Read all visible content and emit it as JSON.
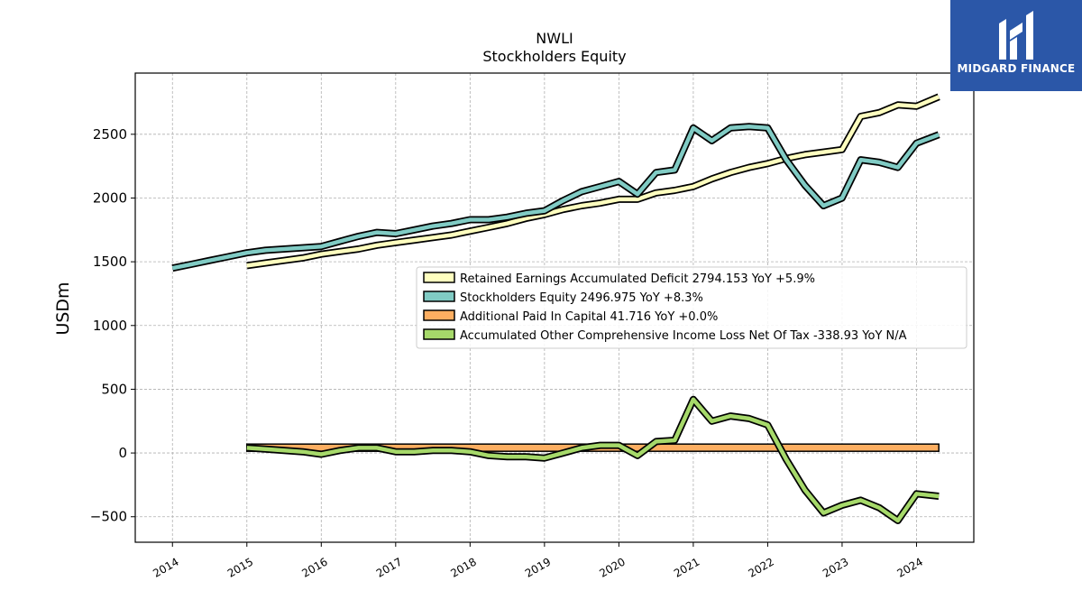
{
  "chart_data": {
    "type": "line",
    "title": "NWLI",
    "subtitle": "Stockholders  Equity",
    "ylabel": "USDm",
    "xlabel": "",
    "xlim": [
      2013.5,
      2024.77
    ],
    "ylim": [
      -700,
      2980
    ],
    "yticks": [
      -500,
      0,
      500,
      1000,
      1500,
      2000,
      2500
    ],
    "ytick_labels": [
      "−500",
      "0",
      "500",
      "1000",
      "1500",
      "2000",
      "2500"
    ],
    "xticks": [
      2014,
      2015,
      2016,
      2017,
      2018,
      2019,
      2020,
      2021,
      2022,
      2023,
      2024
    ],
    "xtick_labels": [
      "2014",
      "2015",
      "2016",
      "2017",
      "2018",
      "2019",
      "2020",
      "2021",
      "2022",
      "2023",
      "2024"
    ],
    "grid": true,
    "legend_position": "center-right",
    "series": [
      {
        "name": "Retained Earnings Accumulated Deficit  2794.153 YoY +5.9%",
        "color": "#ffffbf",
        "x": [
          2015.0,
          2015.25,
          2015.5,
          2015.75,
          2016.0,
          2016.25,
          2016.5,
          2016.75,
          2017.0,
          2017.25,
          2017.5,
          2017.75,
          2018.0,
          2018.25,
          2018.5,
          2018.75,
          2019.0,
          2019.25,
          2019.5,
          2019.75,
          2020.0,
          2020.25,
          2020.5,
          2020.75,
          2021.0,
          2021.25,
          2021.5,
          2021.75,
          2022.0,
          2022.25,
          2022.5,
          2022.75,
          2023.0,
          2023.25,
          2023.5,
          2023.75,
          2024.0,
          2024.3
        ],
        "y": [
          1470,
          1490,
          1510,
          1530,
          1560,
          1580,
          1600,
          1630,
          1650,
          1670,
          1690,
          1710,
          1740,
          1770,
          1800,
          1840,
          1870,
          1910,
          1940,
          1960,
          1990,
          1990,
          2040,
          2060,
          2090,
          2150,
          2200,
          2240,
          2270,
          2310,
          2340,
          2360,
          2380,
          2640,
          2670,
          2730,
          2720,
          2794
        ]
      },
      {
        "name": "Stockholders Equity  2496.975 YoY +8.3%",
        "color": "#80cbc4",
        "x": [
          2014.0,
          2014.25,
          2014.5,
          2014.75,
          2015.0,
          2015.25,
          2015.5,
          2015.75,
          2016.0,
          2016.25,
          2016.5,
          2016.75,
          2017.0,
          2017.25,
          2017.5,
          2017.75,
          2018.0,
          2018.25,
          2018.5,
          2018.75,
          2019.0,
          2019.25,
          2019.5,
          2019.75,
          2020.0,
          2020.25,
          2020.5,
          2020.75,
          2021.0,
          2021.25,
          2021.5,
          2021.75,
          2022.0,
          2022.25,
          2022.5,
          2022.75,
          2023.0,
          2023.25,
          2023.5,
          2023.75,
          2024.0,
          2024.3
        ],
        "y": [
          1450,
          1480,
          1510,
          1540,
          1570,
          1590,
          1600,
          1610,
          1620,
          1660,
          1700,
          1730,
          1720,
          1750,
          1780,
          1800,
          1830,
          1830,
          1850,
          1880,
          1900,
          1980,
          2050,
          2090,
          2130,
          2030,
          2200,
          2220,
          2550,
          2450,
          2550,
          2560,
          2550,
          2300,
          2100,
          1940,
          2000,
          2300,
          2280,
          2240,
          2430,
          2497
        ]
      },
      {
        "name": "Additional Paid In Capital  41.716 YoY +0.0%",
        "color": "#fdae61",
        "x": [
          2015.0,
          2024.3
        ],
        "y": [
          41.716,
          41.716
        ]
      },
      {
        "name": "Accumulated Other Comprehensive Income Loss Net Of Tax  -338.93 YoY N/A",
        "color": "#a6d96a",
        "x": [
          2015.0,
          2015.25,
          2015.5,
          2015.75,
          2016.0,
          2016.25,
          2016.5,
          2016.75,
          2017.0,
          2017.25,
          2017.5,
          2017.75,
          2018.0,
          2018.25,
          2018.5,
          2018.75,
          2019.0,
          2019.25,
          2019.5,
          2019.75,
          2020.0,
          2020.25,
          2020.5,
          2020.75,
          2021.0,
          2021.25,
          2021.5,
          2021.75,
          2022.0,
          2022.25,
          2022.5,
          2022.75,
          2023.0,
          2023.25,
          2023.5,
          2023.75,
          2024.0,
          2024.3
        ],
        "y": [
          40,
          30,
          20,
          10,
          -10,
          20,
          40,
          40,
          10,
          10,
          20,
          20,
          10,
          -20,
          -30,
          -30,
          -40,
          0,
          40,
          60,
          60,
          -20,
          90,
          100,
          420,
          250,
          290,
          270,
          220,
          -50,
          -290,
          -470,
          -410,
          -370,
          -430,
          -530,
          -320,
          -339
        ]
      }
    ]
  },
  "brand": {
    "name": "MIDGARD FINANCE",
    "color": "#2b57a8"
  }
}
